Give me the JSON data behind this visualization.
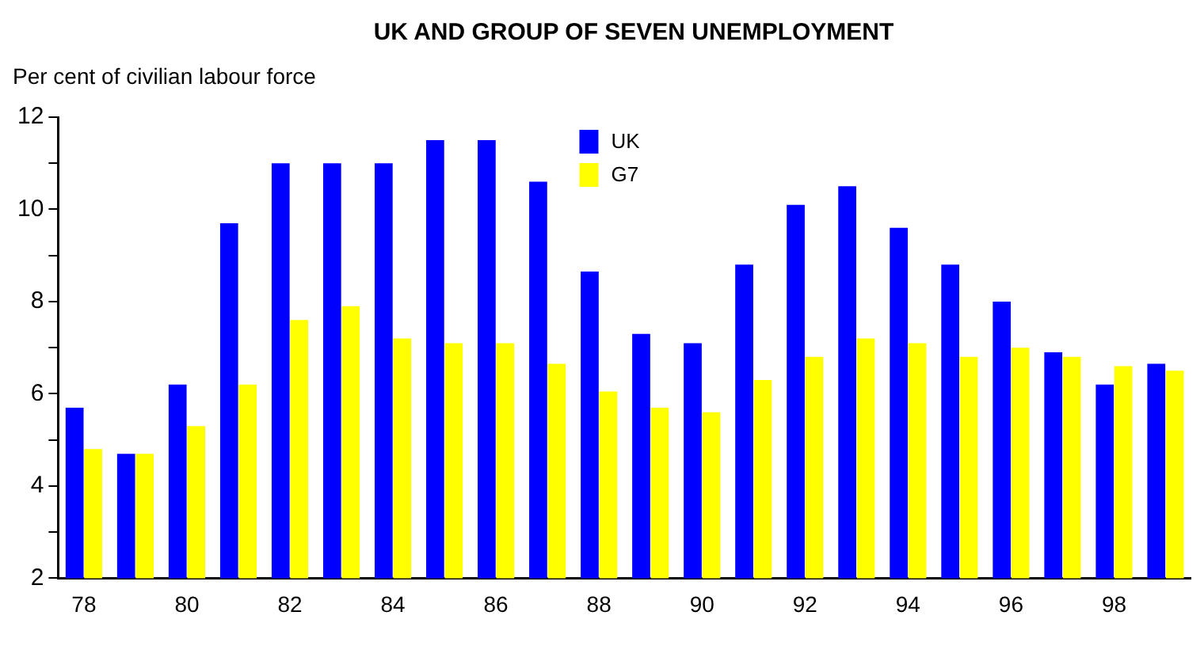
{
  "chart_data": {
    "type": "bar",
    "title": "UK AND GROUP OF SEVEN UNEMPLOYMENT",
    "ylabel": "Per cent of civilian labour force",
    "categories": [
      "78",
      null,
      "80",
      null,
      "82",
      null,
      "84",
      null,
      "86",
      null,
      "88",
      null,
      "90",
      null,
      "92",
      null,
      "94",
      null,
      "96",
      null,
      "98",
      null
    ],
    "series": [
      {
        "name": "UK",
        "color": "#0000ff",
        "values": [
          5.7,
          4.7,
          6.2,
          9.7,
          11.0,
          11.0,
          11.0,
          11.5,
          11.5,
          10.6,
          8.65,
          7.3,
          7.1,
          8.8,
          10.1,
          10.5,
          9.6,
          8.8,
          8.0,
          6.9,
          6.2,
          6.65
        ]
      },
      {
        "name": "G7",
        "color": "#ffff00",
        "values": [
          4.8,
          4.7,
          5.3,
          6.2,
          7.6,
          7.9,
          7.2,
          7.1,
          7.1,
          6.65,
          6.05,
          5.7,
          5.6,
          6.3,
          6.8,
          7.2,
          7.1,
          6.8,
          7.0,
          6.8,
          6.6,
          6.5
        ]
      }
    ],
    "ylim": [
      2,
      12
    ],
    "yticks": [
      2,
      4,
      6,
      8,
      10,
      12
    ],
    "grid": false,
    "legend": "top"
  }
}
